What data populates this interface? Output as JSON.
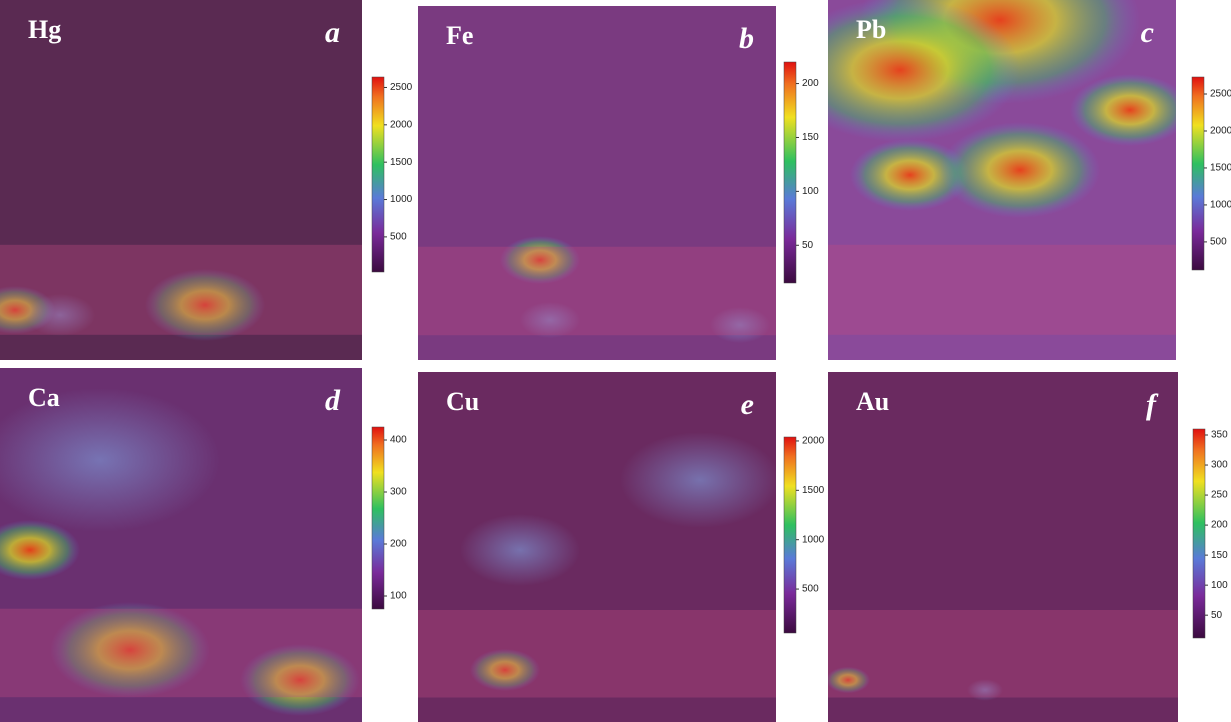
{
  "panels": [
    {
      "element": "Hg",
      "letter": "a",
      "colorbar": {
        "lim": [
          30,
          2640
        ],
        "ticks": [
          500,
          1000,
          1500,
          2000,
          2500
        ]
      }
    },
    {
      "element": "Fe",
      "letter": "b",
      "colorbar": {
        "lim": [
          15,
          220
        ],
        "ticks": [
          50,
          100,
          150,
          200
        ]
      }
    },
    {
      "element": "Pb",
      "letter": "c",
      "colorbar": {
        "lim": [
          120,
          2730
        ],
        "ticks": [
          500,
          1000,
          1500,
          2000,
          2500
        ]
      }
    },
    {
      "element": "Ca",
      "letter": "d",
      "colorbar": {
        "lim": [
          75,
          425
        ],
        "ticks": [
          100,
          200,
          300,
          400
        ]
      }
    },
    {
      "element": "Cu",
      "letter": "e",
      "colorbar": {
        "lim": [
          55,
          2040
        ],
        "ticks": [
          500,
          1000,
          1500,
          2000
        ]
      }
    },
    {
      "element": "Au",
      "letter": "f",
      "colorbar": {
        "lim": [
          12,
          360
        ],
        "ticks": [
          50,
          100,
          150,
          200,
          250,
          300,
          350
        ]
      }
    }
  ]
}
